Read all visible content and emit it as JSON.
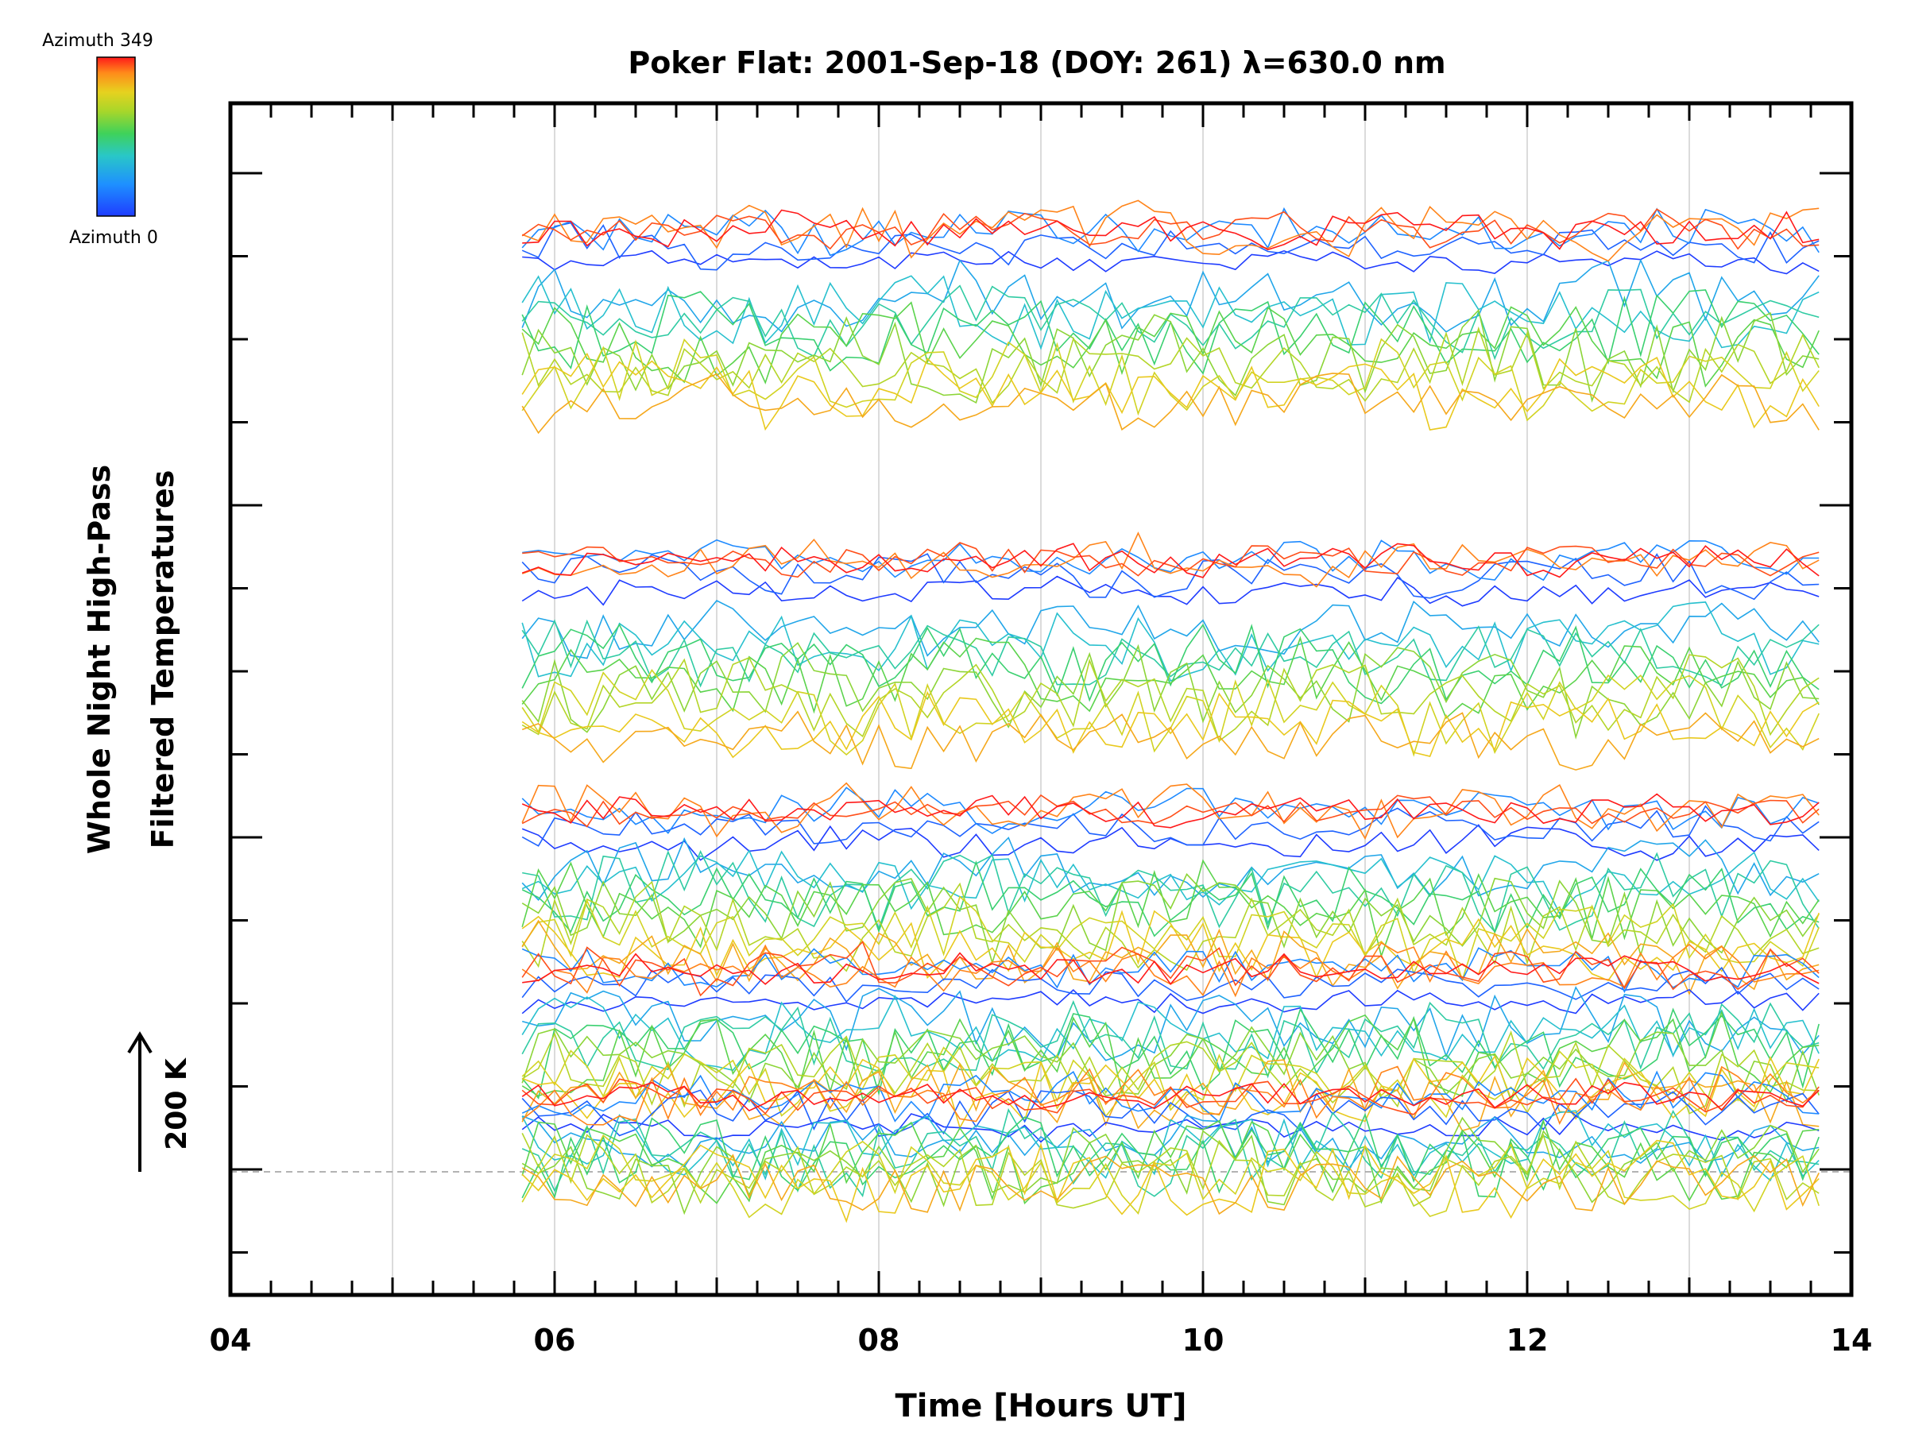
{
  "title": "Poker Flat: 2001-Sep-18 (DOY: 261) λ=630.0 nm",
  "xlabel": "Time [Hours UT]",
  "ylabel_line1": "Whole Night High-Pass",
  "ylabel_line2": "Filtered Temperatures",
  "scale_label": "200 K",
  "colorbar": {
    "top_label": "Azimuth 349",
    "bottom_label": "Azimuth 0",
    "colors": [
      "#1f3cff",
      "#1e90ff",
      "#29c7c7",
      "#3fd25a",
      "#a8d62a",
      "#e6d21f",
      "#ff8c1a",
      "#ff1a1a"
    ]
  },
  "chart_data": {
    "type": "line",
    "title": "Poker Flat: 2001-Sep-18 (DOY: 261) λ=630.0 nm",
    "xlabel": "Time [Hours UT]",
    "ylabel": "Whole Night High-Pass Filtered Temperatures",
    "xlim": [
      4,
      14
    ],
    "x_tick_labels": [
      "04",
      "06",
      "08",
      "10",
      "12",
      "14"
    ],
    "x_ticks": [
      4,
      6,
      8,
      10,
      12,
      14
    ],
    "x_minor_step": 0.25,
    "x_gridlines": [
      5,
      6,
      7,
      8,
      9,
      10,
      11,
      12,
      13
    ],
    "data_start_hour": 5.8,
    "data_end_hour": 13.85,
    "series_count": 80,
    "series_color_by": "azimuth",
    "azimuth_range": [
      0,
      349
    ],
    "scale_bar_K": 200,
    "y_units": "K",
    "baseline_dashed": true,
    "grid": true,
    "legend": "colorbar top-left"
  }
}
